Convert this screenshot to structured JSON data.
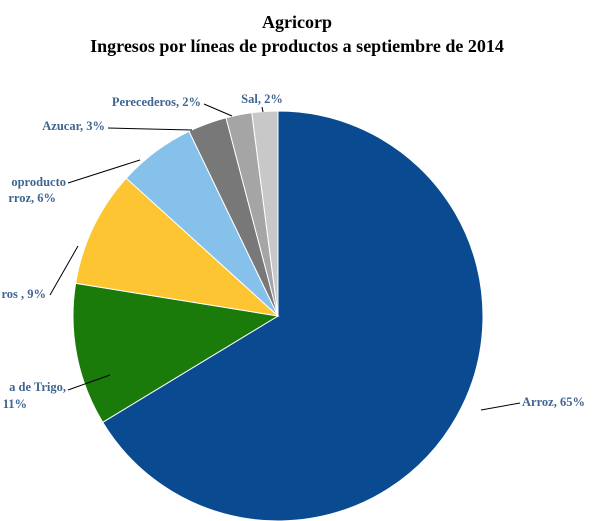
{
  "chart_data": {
    "type": "pie",
    "title": "Agricorp",
    "subtitle": "Ingresos por líneas de productos a septiembre de 2014",
    "values": [
      65,
      11,
      9,
      6,
      3,
      2,
      2
    ],
    "value_labels": [
      [
        "Arroz, 65%"
      ],
      [
        "a de Trigo,",
        "11%"
      ],
      [
        "ros , 9%"
      ],
      [
        "oproducto",
        "rroz, 6%"
      ],
      [
        "Azucar, 3%"
      ],
      [
        "Perecederos, 2%"
      ],
      [
        "Sal, 2%"
      ]
    ],
    "colors": [
      "#0a4a91",
      "#1a7a0a",
      "#fdc532",
      "#85c1ea",
      "#787878",
      "#a5a5a5",
      "#c8c8c8"
    ]
  }
}
